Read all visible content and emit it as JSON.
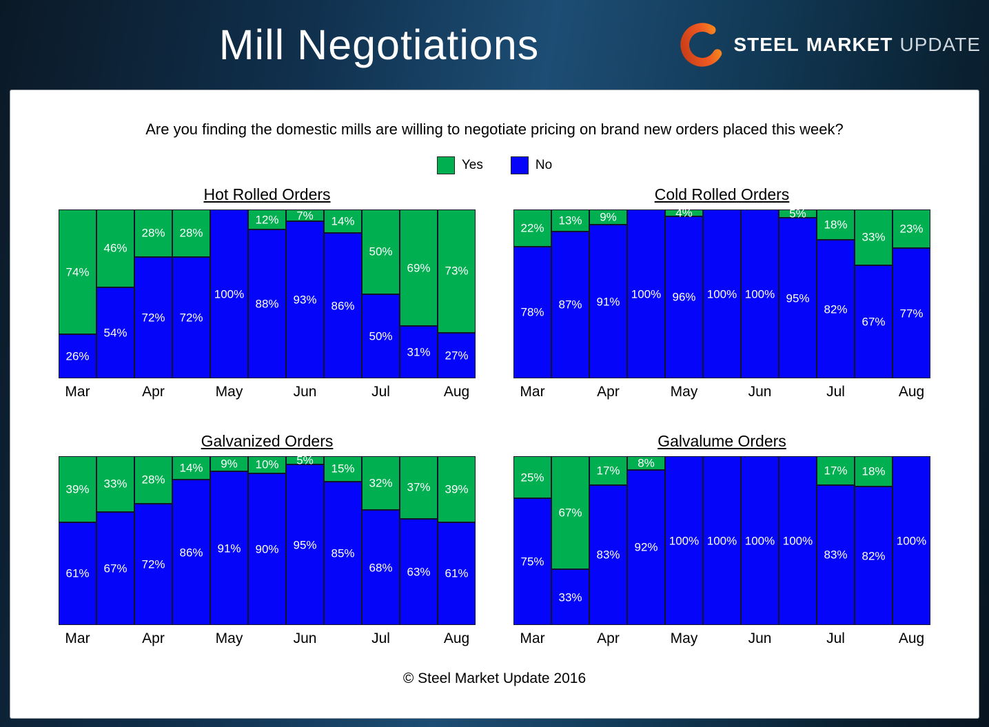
{
  "header": {
    "title": "Mill Negotiations",
    "logo": {
      "steel": "STEEL",
      "market": "MARKET",
      "update": "UPDATE",
      "orange": "#F0661F"
    }
  },
  "question": "Are you finding the domestic mills are willing to negotiate pricing on brand new orders placed this week?",
  "legend": {
    "items": [
      {
        "label": "Yes",
        "color": "#00B050"
      },
      {
        "label": "No",
        "color": "#0505FA"
      }
    ]
  },
  "footer": "© Steel Market Update 2016",
  "chart_data": [
    {
      "type": "bar",
      "stacked": true,
      "percent_stacked": true,
      "title": "Hot Rolled Orders",
      "ylim": [
        0,
        100
      ],
      "x_axis_note": "11 weekly bars, month labels under alternating bars",
      "month_labels": [
        "Mar",
        "Apr",
        "May",
        "Jun",
        "Jul",
        "Aug"
      ],
      "series": [
        {
          "name": "Yes",
          "color": "#00B050",
          "values": [
            74,
            46,
            28,
            28,
            0,
            12,
            7,
            14,
            50,
            69,
            73
          ]
        },
        {
          "name": "No",
          "color": "#0505FA",
          "values": [
            26,
            54,
            72,
            72,
            100,
            88,
            93,
            86,
            50,
            31,
            27
          ]
        }
      ]
    },
    {
      "type": "bar",
      "stacked": true,
      "percent_stacked": true,
      "title": "Cold Rolled Orders",
      "ylim": [
        0,
        100
      ],
      "x_axis_note": "11 weekly bars, month labels under alternating bars",
      "month_labels": [
        "Mar",
        "Apr",
        "May",
        "Jun",
        "Jul",
        "Aug"
      ],
      "series": [
        {
          "name": "Yes",
          "color": "#00B050",
          "values": [
            22,
            13,
            9,
            0,
            4,
            0,
            0,
            5,
            18,
            33,
            23
          ]
        },
        {
          "name": "No",
          "color": "#0505FA",
          "values": [
            78,
            87,
            91,
            100,
            96,
            100,
            100,
            95,
            82,
            67,
            77
          ]
        }
      ]
    },
    {
      "type": "bar",
      "stacked": true,
      "percent_stacked": true,
      "title": "Galvanized Orders",
      "ylim": [
        0,
        100
      ],
      "x_axis_note": "11 weekly bars, month labels under alternating bars",
      "month_labels": [
        "Mar",
        "Apr",
        "May",
        "Jun",
        "Jul",
        "Aug"
      ],
      "series": [
        {
          "name": "Yes",
          "color": "#00B050",
          "values": [
            39,
            33,
            28,
            14,
            9,
            10,
            5,
            15,
            32,
            37,
            39
          ]
        },
        {
          "name": "No",
          "color": "#0505FA",
          "values": [
            61,
            67,
            72,
            86,
            91,
            90,
            95,
            85,
            68,
            63,
            61
          ]
        }
      ]
    },
    {
      "type": "bar",
      "stacked": true,
      "percent_stacked": true,
      "title": "Galvalume Orders",
      "ylim": [
        0,
        100
      ],
      "x_axis_note": "11 weekly bars, month labels under alternating bars",
      "month_labels": [
        "Mar",
        "Apr",
        "May",
        "Jun",
        "Jul",
        "Aug"
      ],
      "series": [
        {
          "name": "Yes",
          "color": "#00B050",
          "values": [
            25,
            67,
            17,
            8,
            0,
            0,
            0,
            0,
            17,
            18,
            0
          ]
        },
        {
          "name": "No",
          "color": "#0505FA",
          "values": [
            75,
            33,
            83,
            92,
            100,
            100,
            100,
            100,
            83,
            82,
            100
          ]
        }
      ]
    }
  ]
}
